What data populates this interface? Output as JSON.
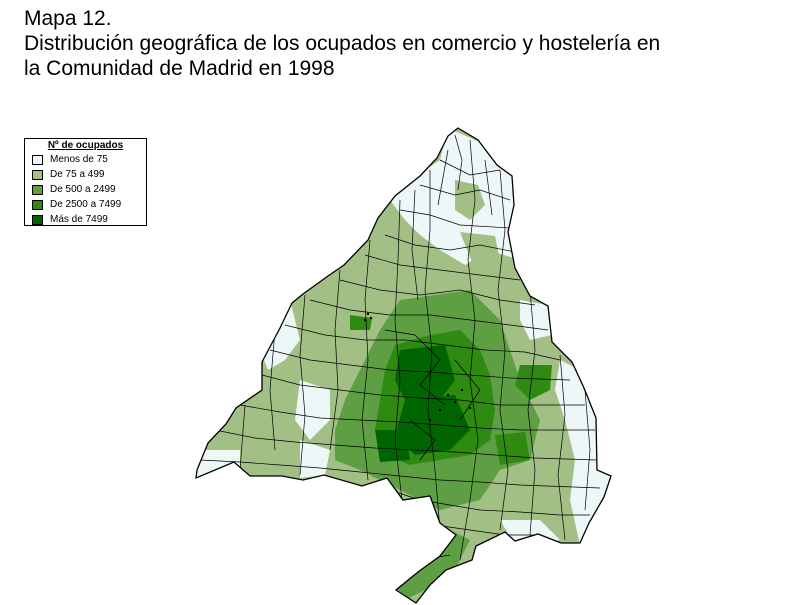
{
  "title": {
    "line1": "Mapa 12.",
    "line2": "Distribución geográfica de los ocupados en comercio y hostelería en",
    "line3": "la Comunidad de Madrid en 1998"
  },
  "legend": {
    "title": "Nº de ocupados",
    "items": [
      {
        "label": "Menos de 75",
        "color": "#eef7f7"
      },
      {
        "label": "De 75 a 499",
        "color": "#a2bf86"
      },
      {
        "label": "De 500 a 2499",
        "color": "#5e9f44"
      },
      {
        "label": "De 2500 a 7499",
        "color": "#2e8a10"
      },
      {
        "label": "Más de 7499",
        "color": "#006400"
      }
    ]
  }
}
